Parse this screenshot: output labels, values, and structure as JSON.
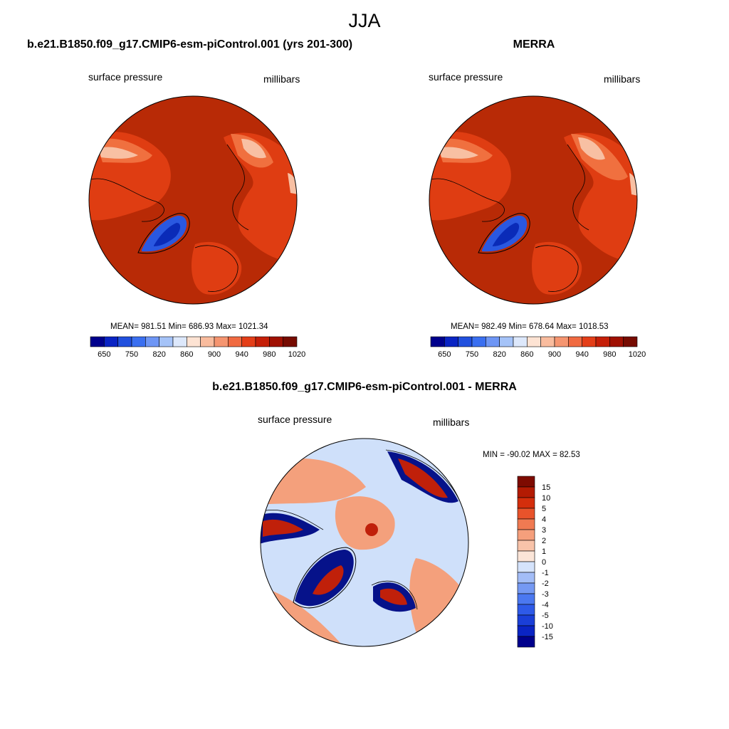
{
  "figure_title": "JJA",
  "left_panel": {
    "title": "b.e21.B1850.f09_g17.CMIP6-esm-piControl.001 (yrs 201-300)",
    "variable": "surface pressure",
    "units": "millibars",
    "stats": "MEAN= 981.51  Min= 686.93  Max= 1021.34"
  },
  "right_panel": {
    "title": "MERRA",
    "variable": "surface pressure",
    "units": "millibars",
    "stats": "MEAN= 982.49  Min= 678.64  Max= 1018.53"
  },
  "diff_panel": {
    "title": "b.e21.B1850.f09_g17.CMIP6-esm-piControl.001 - MERRA",
    "variable": "surface pressure",
    "units": "millibars",
    "stats": "MIN = -90.02 MAX =  82.53"
  },
  "colorbar_abs": {
    "colors": [
      "#00008c",
      "#0a24c4",
      "#2150de",
      "#3a6ff0",
      "#6e96f5",
      "#a5c3f8",
      "#dde8fb",
      "#fde3d3",
      "#f9bc9e",
      "#f59570",
      "#f06a41",
      "#e43e18",
      "#c51f08",
      "#a01002",
      "#760b01"
    ],
    "labels": [
      "650",
      "750",
      "820",
      "860",
      "900",
      "940",
      "980",
      "1020"
    ]
  },
  "colorbar_diff": {
    "colors": [
      "#00008c",
      "#0a24c4",
      "#1a3fd8",
      "#2e5ae8",
      "#4b78f0",
      "#7599f3",
      "#a3bdf7",
      "#d5e3fb",
      "#fbe5d8",
      "#f8c3a9",
      "#f59f7c",
      "#f07a52",
      "#e8532b",
      "#d42e0c",
      "#b31b03",
      "#7e0b01"
    ],
    "labels": [
      "-15",
      "-10",
      "-5",
      "-4",
      "-3",
      "-2",
      "-1",
      "0",
      "1",
      "2",
      "3",
      "4",
      "5",
      "10",
      "15"
    ]
  },
  "map_colors": {
    "ocean": "#b82a06",
    "land_mid": "#df3d12",
    "land_light": "#f0703f",
    "pale": "#f8c0a3",
    "blue": "#2a58e0",
    "dark_blue": "#0a2bb8",
    "diff_bg": "#cfe0fa",
    "diff_red": "#f4a07c",
    "diff_dark_red": "#c0200a",
    "diff_dark_blue": "#06128a"
  }
}
